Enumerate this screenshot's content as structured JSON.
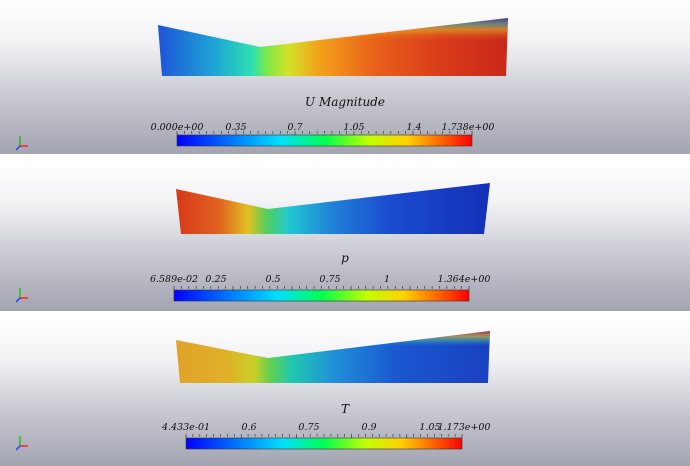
{
  "panels": [
    {
      "id": "u",
      "field_label": "U Magnitude",
      "colorbar_labels": [
        "0.000e+00",
        "0.35",
        "0.7",
        "1.05",
        "1.4",
        "1.738e+00"
      ]
    },
    {
      "id": "p",
      "field_label": "p",
      "colorbar_labels": [
        "6.589e-02",
        "0.25",
        "0.5",
        "0.75",
        "1",
        "1.364e+00"
      ]
    },
    {
      "id": "t",
      "field_label": "T",
      "colorbar_labels": [
        "4.433e-01",
        "0.6",
        "0.75",
        "0.9",
        "1.05",
        "1.173e+00"
      ]
    }
  ],
  "colors": {
    "jet_low": "#0000ff",
    "jet_mid": "#00ff40",
    "jet_high": "#ff0000",
    "axis_x": "#ff2020",
    "axis_y": "#20c020",
    "axis_z": "#2040ff"
  }
}
